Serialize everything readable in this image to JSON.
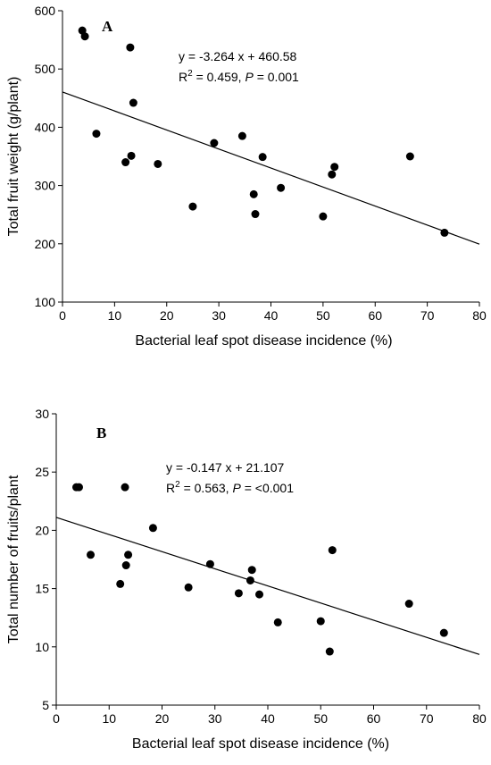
{
  "chart_data": [
    {
      "type": "scatter",
      "panel_label": "A",
      "xlabel": "Bacterial leaf spot disease incidence (%)",
      "ylabel": "Total fruit weight (g/plant)",
      "xlim": [
        0,
        80
      ],
      "ylim": [
        100,
        600
      ],
      "xticks": [
        0,
        10,
        20,
        30,
        40,
        50,
        60,
        70,
        80
      ],
      "yticks": [
        100,
        200,
        300,
        400,
        500,
        600
      ],
      "equation": "y = -3.264 x + 460.58",
      "r2_prefix": "R",
      "r2_sup": "2",
      "r2_mid": " = 0.459, ",
      "p_label": "P",
      "p_value": " = 0.001",
      "fit": {
        "slope": -3.264,
        "intercept": 460.58
      },
      "grid": false,
      "points": [
        {
          "x": 3.8,
          "y": 566
        },
        {
          "x": 4.3,
          "y": 556
        },
        {
          "x": 6.5,
          "y": 389
        },
        {
          "x": 12.1,
          "y": 340
        },
        {
          "x": 13.0,
          "y": 537
        },
        {
          "x": 13.2,
          "y": 351
        },
        {
          "x": 13.6,
          "y": 442
        },
        {
          "x": 18.3,
          "y": 337
        },
        {
          "x": 25.0,
          "y": 264
        },
        {
          "x": 29.1,
          "y": 373
        },
        {
          "x": 34.5,
          "y": 385
        },
        {
          "x": 36.7,
          "y": 285
        },
        {
          "x": 37.0,
          "y": 251
        },
        {
          "x": 38.4,
          "y": 349
        },
        {
          "x": 41.9,
          "y": 296
        },
        {
          "x": 50.0,
          "y": 247
        },
        {
          "x": 51.7,
          "y": 319
        },
        {
          "x": 52.2,
          "y": 332
        },
        {
          "x": 66.7,
          "y": 350
        },
        {
          "x": 73.3,
          "y": 219
        }
      ]
    },
    {
      "type": "scatter",
      "panel_label": "B",
      "xlabel": "Bacterial leaf spot disease incidence (%)",
      "ylabel": "Total number of fruits/plant",
      "xlim": [
        0,
        80
      ],
      "ylim": [
        5,
        30
      ],
      "xticks": [
        0,
        10,
        20,
        30,
        40,
        50,
        60,
        70,
        80
      ],
      "yticks": [
        5,
        10,
        15,
        20,
        25,
        30
      ],
      "equation": "y = -0.147 x + 21.107",
      "r2_prefix": "R",
      "r2_sup": "2",
      "r2_mid": " = 0.563, ",
      "p_label": "P",
      "p_value": " = <0.001",
      "fit": {
        "slope": -0.147,
        "intercept": 21.107
      },
      "grid": false,
      "points": [
        {
          "x": 3.8,
          "y": 23.7
        },
        {
          "x": 4.3,
          "y": 23.7
        },
        {
          "x": 6.5,
          "y": 17.9
        },
        {
          "x": 12.1,
          "y": 15.4
        },
        {
          "x": 13.0,
          "y": 23.7
        },
        {
          "x": 13.2,
          "y": 17.0
        },
        {
          "x": 13.6,
          "y": 17.9
        },
        {
          "x": 18.3,
          "y": 20.2
        },
        {
          "x": 25.0,
          "y": 15.1
        },
        {
          "x": 29.1,
          "y": 17.1
        },
        {
          "x": 34.5,
          "y": 14.6
        },
        {
          "x": 36.7,
          "y": 15.7
        },
        {
          "x": 37.0,
          "y": 16.6
        },
        {
          "x": 38.4,
          "y": 14.5
        },
        {
          "x": 41.9,
          "y": 12.1
        },
        {
          "x": 50.0,
          "y": 12.2
        },
        {
          "x": 51.7,
          "y": 9.6
        },
        {
          "x": 52.2,
          "y": 18.3
        },
        {
          "x": 66.7,
          "y": 13.7
        },
        {
          "x": 73.3,
          "y": 11.2
        }
      ]
    }
  ]
}
